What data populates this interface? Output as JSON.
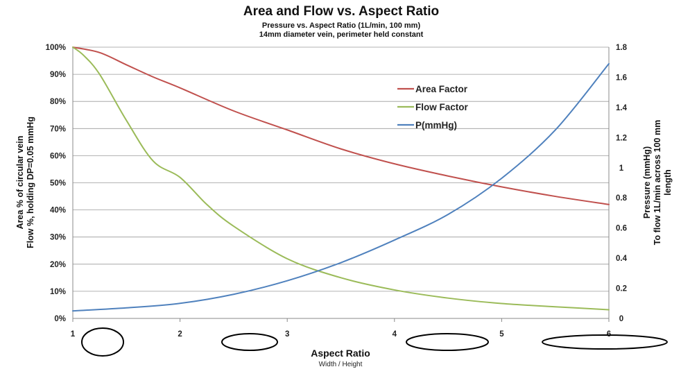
{
  "chart_data": {
    "type": "line",
    "title": "Area and Flow vs. Aspect Ratio",
    "subtitle": "Pressure vs. Aspect Ratio (1L/min, 100 mm)",
    "subtitle2": "14mm diameter vein, perimeter held constant",
    "xlabel": "Aspect Ratio",
    "xlabel_sub": "Width / Height",
    "ylabel_left_line1": "Area % of circular vein",
    "ylabel_left_line2": "Flow %, holding DP=0.05 mmHg",
    "ylabel_right_line1": "Pressure (mmHg)",
    "ylabel_right_line2": "To flow 1L/min across 100 mm",
    "ylabel_right_line3": "length",
    "xlim": [
      1,
      6
    ],
    "ylim_left": [
      0,
      100
    ],
    "ylim_right": [
      0,
      1.8
    ],
    "x_ticks": [
      "1",
      "2",
      "3",
      "4",
      "5",
      "6"
    ],
    "y_left_ticks": [
      "0%",
      "10%",
      "20%",
      "30%",
      "40%",
      "50%",
      "60%",
      "70%",
      "80%",
      "90%",
      "100%"
    ],
    "y_right_ticks": [
      "0",
      "0.2",
      "0.4",
      "0.6",
      "0.8",
      "1",
      "1.2",
      "1.4",
      "1.6",
      "1.8"
    ],
    "grid": true,
    "legend_position": "upper-center",
    "series": [
      {
        "name": "Area Factor",
        "color": "#c0504d",
        "axis": "left",
        "x": [
          1,
          1.25,
          1.5,
          1.75,
          2,
          2.5,
          3,
          3.5,
          4,
          4.5,
          5,
          5.5,
          6
        ],
        "y": [
          100,
          98,
          93.5,
          89,
          85,
          76.5,
          69.5,
          62.5,
          57,
          52.5,
          48.5,
          45,
          42
        ]
      },
      {
        "name": "Flow Factor",
        "color": "#9bbb59",
        "axis": "left",
        "x": [
          1,
          1.1,
          1.25,
          1.5,
          1.75,
          2,
          2.25,
          2.5,
          3,
          3.5,
          4,
          4.5,
          5,
          5.5,
          6
        ],
        "y": [
          100,
          97,
          90,
          73,
          58,
          52,
          42,
          34,
          22,
          15,
          10.5,
          7.5,
          5.5,
          4.3,
          3.2
        ]
      },
      {
        "name": "P(mmHg)",
        "color": "#4f81bd",
        "axis": "right",
        "x": [
          1,
          1.5,
          2,
          2.5,
          3,
          3.5,
          4,
          4.5,
          5,
          5.5,
          6
        ],
        "y": [
          0.05,
          0.07,
          0.1,
          0.16,
          0.25,
          0.37,
          0.52,
          0.69,
          0.93,
          1.25,
          1.69
        ]
      }
    ],
    "shapes": [
      {
        "name": "ellipse-ar-1",
        "aspect": 1
      },
      {
        "name": "ellipse-ar-2",
        "aspect": 2
      },
      {
        "name": "ellipse-ar-4",
        "aspect": 4
      },
      {
        "name": "ellipse-ar-6",
        "aspect": 6
      }
    ]
  }
}
